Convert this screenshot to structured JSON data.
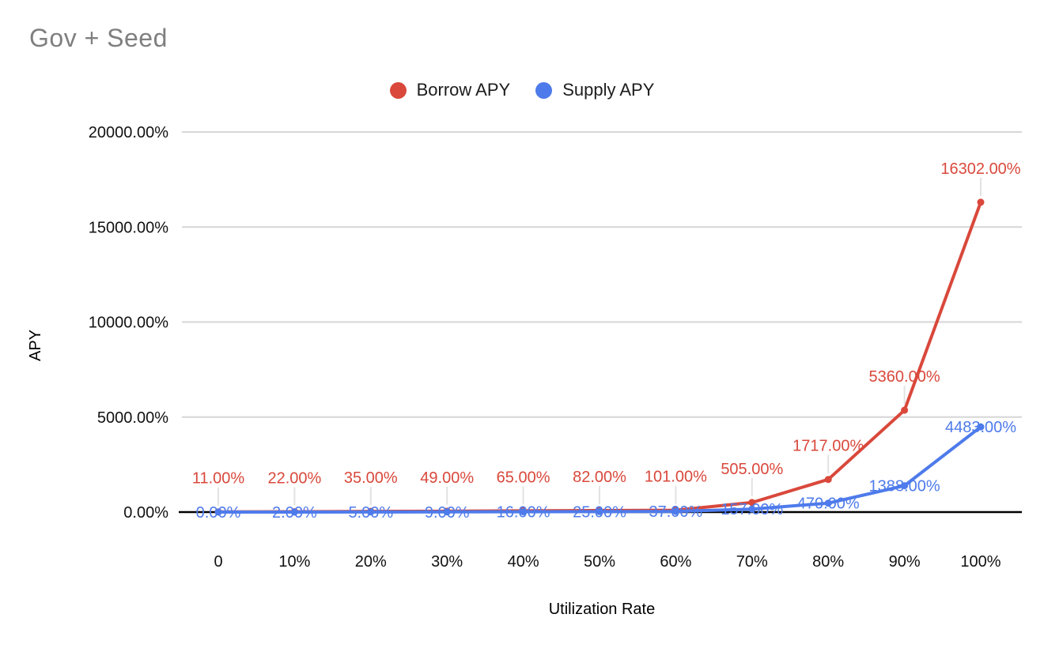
{
  "chart_data": {
    "type": "line",
    "title": "Gov + Seed",
    "xlabel": "Utilization Rate",
    "ylabel": "APY",
    "x": [
      0,
      10,
      20,
      30,
      40,
      50,
      60,
      70,
      80,
      90,
      100
    ],
    "x_tick_labels": [
      "0",
      "10%",
      "20%",
      "30%",
      "40%",
      "50%",
      "60%",
      "70%",
      "80%",
      "90%",
      "100%"
    ],
    "y_ticks": [
      0,
      5000,
      10000,
      15000,
      20000
    ],
    "y_tick_labels": [
      "0.00%",
      "5000.00%",
      "10000.00%",
      "15000.00%",
      "20000.00%"
    ],
    "ylim": [
      0,
      20000
    ],
    "grid": "horizontal",
    "legend_position": "top-center",
    "background_color": "#ffffff",
    "gridline_color": "#d6d6d6",
    "axis_line_color": "#000000",
    "series": [
      {
        "name": "Borrow APY",
        "color": "#d9483b",
        "values": [
          11,
          22,
          35,
          49,
          65,
          82,
          101,
          505,
          1717,
          5360,
          16302
        ],
        "labels": [
          "11.00%",
          "22.00%",
          "35.00%",
          "49.00%",
          "65.00%",
          "82.00%",
          "101.00%",
          "505.00%",
          "1717.00%",
          "5360.00%",
          "16302.00%"
        ]
      },
      {
        "name": "Supply APY",
        "color": "#4e7beb",
        "values": [
          0,
          2,
          5,
          9,
          16,
          25,
          37,
          157,
          470,
          1388,
          4483
        ],
        "labels": [
          "0.00%",
          "2.00%",
          "5.00%",
          "9.00%",
          "16.00%",
          "25.00%",
          "37.00%",
          "157.00%",
          "470.00%",
          "1388.00%",
          "4483.00%"
        ]
      }
    ]
  }
}
